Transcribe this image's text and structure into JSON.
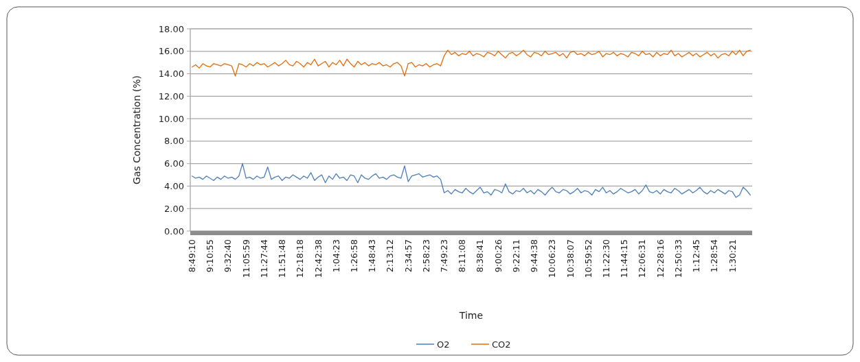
{
  "chart_data": {
    "type": "line",
    "xlabel": "Time",
    "ylabel": "Gas Concentration (%)",
    "categories": [
      "8:49:10",
      null,
      null,
      null,
      null,
      "9:10:55",
      null,
      null,
      null,
      null,
      "9:32:40",
      null,
      null,
      null,
      null,
      "11:05:59",
      null,
      null,
      null,
      null,
      "11:27:44",
      null,
      null,
      null,
      null,
      "11:51:48",
      null,
      null,
      null,
      null,
      "12:18:18",
      null,
      null,
      null,
      null,
      "12:42:38",
      null,
      null,
      null,
      null,
      "1:04:23",
      null,
      null,
      null,
      null,
      "1:26:58",
      null,
      null,
      null,
      null,
      "1:48:43",
      null,
      null,
      null,
      null,
      "2:13:12",
      null,
      null,
      null,
      null,
      "2:34:57",
      null,
      null,
      null,
      null,
      "2:58:23",
      null,
      null,
      null,
      null,
      "7:49:23",
      null,
      null,
      null,
      null,
      "8:11:08",
      null,
      null,
      null,
      null,
      "8:38:41",
      null,
      null,
      null,
      null,
      "9:00:26",
      null,
      null,
      null,
      null,
      "9:22:11",
      null,
      null,
      null,
      null,
      "9:44:38",
      null,
      null,
      null,
      null,
      "10:06:23",
      null,
      null,
      null,
      null,
      "10:38:07",
      null,
      null,
      null,
      null,
      "10:59:52",
      null,
      null,
      null,
      null,
      "11:22:30",
      null,
      null,
      null,
      null,
      "11:44:15",
      null,
      null,
      null,
      null,
      "12:06:31",
      null,
      null,
      null,
      null,
      "12:28:16",
      null,
      null,
      null,
      null,
      "12:50:33",
      null,
      null,
      null,
      null,
      "1:12:45",
      null,
      null,
      null,
      null,
      "1:28:54",
      null,
      null,
      null,
      null,
      "1:30:21",
      null,
      null,
      null,
      null,
      null
    ],
    "series": [
      {
        "name": "O2",
        "color": "#4a7ebb",
        "values": [
          4.9,
          4.7,
          4.8,
          4.6,
          4.9,
          4.7,
          4.5,
          4.8,
          4.6,
          4.9,
          4.7,
          4.8,
          4.6,
          4.9,
          6.0,
          4.7,
          4.8,
          4.6,
          4.9,
          4.7,
          4.8,
          5.7,
          4.6,
          4.8,
          4.9,
          4.5,
          4.8,
          4.7,
          5.0,
          4.8,
          4.6,
          4.9,
          4.7,
          5.2,
          4.5,
          4.8,
          5.0,
          4.3,
          4.9,
          4.6,
          5.1,
          4.7,
          4.8,
          4.5,
          5.0,
          4.9,
          4.3,
          5.0,
          4.7,
          4.6,
          4.9,
          5.1,
          4.7,
          4.8,
          4.6,
          4.9,
          5.0,
          4.8,
          4.7,
          5.8,
          4.4,
          4.9,
          5.0,
          5.1,
          4.8,
          4.9,
          5.0,
          4.8,
          4.9,
          4.6,
          3.4,
          3.6,
          3.3,
          3.7,
          3.5,
          3.4,
          3.8,
          3.5,
          3.3,
          3.6,
          3.9,
          3.4,
          3.5,
          3.2,
          3.7,
          3.6,
          3.4,
          4.2,
          3.5,
          3.3,
          3.6,
          3.5,
          3.8,
          3.4,
          3.6,
          3.3,
          3.7,
          3.5,
          3.2,
          3.6,
          3.9,
          3.5,
          3.4,
          3.7,
          3.6,
          3.3,
          3.5,
          3.8,
          3.4,
          3.6,
          3.5,
          3.2,
          3.7,
          3.5,
          3.9,
          3.4,
          3.6,
          3.3,
          3.5,
          3.8,
          3.6,
          3.4,
          3.5,
          3.7,
          3.3,
          3.6,
          4.1,
          3.5,
          3.4,
          3.6,
          3.3,
          3.7,
          3.5,
          3.4,
          3.8,
          3.6,
          3.3,
          3.5,
          3.7,
          3.4,
          3.6,
          3.9,
          3.5,
          3.3,
          3.6,
          3.4,
          3.7,
          3.5,
          3.3,
          3.6,
          3.5,
          3.0,
          3.2,
          3.9,
          3.6,
          3.2
        ]
      },
      {
        "name": "CO2",
        "color": "#e46c0a",
        "values": [
          14.6,
          14.8,
          14.5,
          14.9,
          14.7,
          14.6,
          14.9,
          14.8,
          14.7,
          14.9,
          14.8,
          14.7,
          13.8,
          14.9,
          14.8,
          14.6,
          14.9,
          14.7,
          15.0,
          14.8,
          14.9,
          14.6,
          14.8,
          15.0,
          14.7,
          14.9,
          15.2,
          14.8,
          14.7,
          15.1,
          14.9,
          14.6,
          15.0,
          14.8,
          15.3,
          14.7,
          14.9,
          15.1,
          14.6,
          15.0,
          14.8,
          15.2,
          14.7,
          15.3,
          14.9,
          14.6,
          15.1,
          14.8,
          15.0,
          14.7,
          14.9,
          14.8,
          15.0,
          14.7,
          14.8,
          14.6,
          14.9,
          15.0,
          14.7,
          13.8,
          14.9,
          15.0,
          14.6,
          14.8,
          14.7,
          14.9,
          14.6,
          14.8,
          14.9,
          14.7,
          15.6,
          16.1,
          15.7,
          15.9,
          15.6,
          15.8,
          15.7,
          16.0,
          15.6,
          15.8,
          15.7,
          15.5,
          15.9,
          15.8,
          15.6,
          16.0,
          15.7,
          15.4,
          15.8,
          15.9,
          15.6,
          15.8,
          16.1,
          15.7,
          15.5,
          15.9,
          15.8,
          15.6,
          16.0,
          15.7,
          15.8,
          15.9,
          15.6,
          15.8,
          15.4,
          15.9,
          16.0,
          15.7,
          15.8,
          15.6,
          15.9,
          15.7,
          15.8,
          16.0,
          15.5,
          15.8,
          15.7,
          15.9,
          15.6,
          15.8,
          15.7,
          15.5,
          15.9,
          15.8,
          15.6,
          16.0,
          15.7,
          15.8,
          15.5,
          15.9,
          15.6,
          15.8,
          15.7,
          16.1,
          15.6,
          15.8,
          15.5,
          15.7,
          15.9,
          15.6,
          15.8,
          15.5,
          15.7,
          15.9,
          15.6,
          15.8,
          15.4,
          15.7,
          15.8,
          15.6,
          16.0,
          15.7,
          16.1,
          15.6,
          16.0,
          16.1
        ]
      }
    ],
    "ylim": [
      0,
      18
    ],
    "yticks": [
      {
        "value": 0,
        "label": "0.00"
      },
      {
        "value": 2,
        "label": "2.00"
      },
      {
        "value": 4,
        "label": "4.00"
      },
      {
        "value": 6,
        "label": "6.00"
      },
      {
        "value": 8,
        "label": "8.00"
      },
      {
        "value": 10,
        "label": "10.00"
      },
      {
        "value": 12,
        "label": "12.00"
      },
      {
        "value": 14,
        "label": "14.00"
      },
      {
        "value": 16,
        "label": "16.00"
      },
      {
        "value": 18,
        "label": "18.00"
      }
    ],
    "grid": "y",
    "legend": "bottom",
    "marker": "none",
    "line_style": "solid"
  }
}
